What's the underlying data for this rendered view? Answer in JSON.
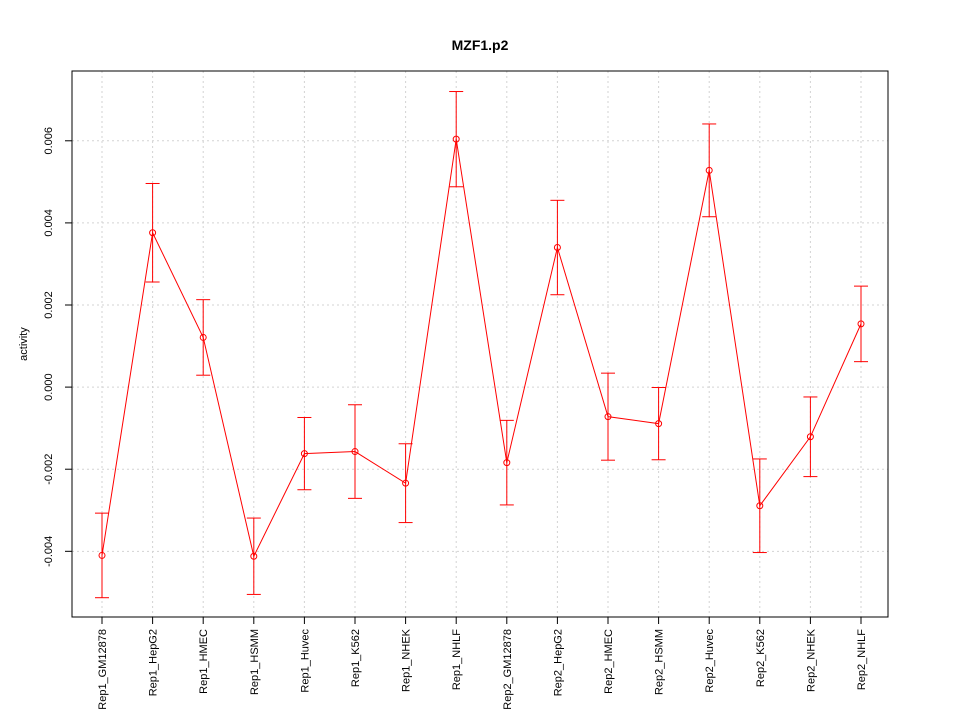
{
  "chart_data": {
    "type": "line",
    "title": "MZF1.p2",
    "xlabel": "",
    "ylabel": "activity",
    "color": "#ff0000",
    "grid": true,
    "ylim": [
      -0.0056,
      0.0077
    ],
    "yticks": [
      -0.004,
      -0.002,
      0.0,
      0.002,
      0.004,
      0.006
    ],
    "ytick_labels": [
      "-0.004",
      "-0.002",
      "0.000",
      "0.002",
      "0.004",
      "0.006"
    ],
    "categories": [
      "Rep1_GM12878",
      "Rep1_HepG2",
      "Rep1_HMEC",
      "Rep1_HSMM",
      "Rep1_Huvec",
      "Rep1_K562",
      "Rep1_NHEK",
      "Rep1_NHLF",
      "Rep2_GM12878",
      "Rep2_HepG2",
      "Rep2_HMEC",
      "Rep2_HSMM",
      "Rep2_Huvec",
      "Rep2_K562",
      "Rep2_NHEK",
      "Rep2_NHLF"
    ],
    "values": [
      -0.0041,
      0.00376,
      0.00121,
      -0.00412,
      -0.00162,
      -0.00157,
      -0.00234,
      0.00604,
      -0.00184,
      0.0034,
      -0.00072,
      -0.00089,
      0.00528,
      -0.00289,
      -0.00121,
      0.00154
    ],
    "upper": [
      -0.00307,
      0.00496,
      0.00213,
      -0.00319,
      -0.00074,
      -0.00043,
      -0.00138,
      0.0072,
      -0.00081,
      0.00455,
      0.00034,
      -1e-05,
      0.00641,
      -0.00175,
      -0.00024,
      0.00246
    ],
    "lower": [
      -0.00513,
      0.00256,
      0.00029,
      -0.00505,
      -0.0025,
      -0.00271,
      -0.0033,
      0.00488,
      -0.00287,
      0.00225,
      -0.00178,
      -0.00177,
      0.00415,
      -0.00403,
      -0.00218,
      0.00062
    ]
  }
}
